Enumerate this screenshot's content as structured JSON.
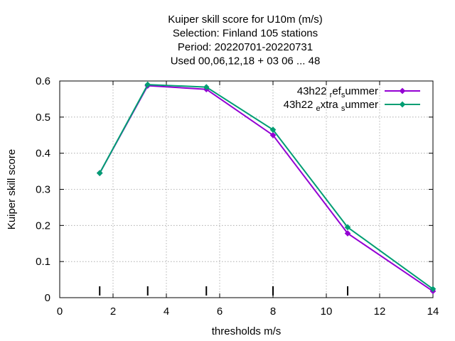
{
  "chart_data": {
    "type": "line",
    "title_lines": [
      "Kuiper skill score  for U10m (m/s)",
      "Selection: Finland     105 stations",
      "Period: 20220701-20220731",
      "Used  00,06,12,18  + 03 06 ... 48"
    ],
    "xlabel": "thresholds m/s",
    "ylabel": "Kuiper skill score",
    "xlim": [
      0,
      14
    ],
    "ylim": [
      0,
      0.6
    ],
    "xticks": [
      0,
      2,
      4,
      6,
      8,
      10,
      12,
      14
    ],
    "xtick_labels": [
      "0",
      "2",
      "4",
      "6",
      "8",
      "10",
      "12",
      "14"
    ],
    "yticks": [
      0,
      0.1,
      0.2,
      0.3,
      0.4,
      0.5,
      0.6
    ],
    "ytick_labels": [
      "0",
      "0.1",
      "0.2",
      "0.3",
      "0.4",
      "0.5",
      "0.6"
    ],
    "grid": true,
    "legend_position": "top-right",
    "threshold_markers": [
      1.5,
      3.3,
      5.5,
      8,
      10.8
    ],
    "series": [
      {
        "name": "43h22_ref_summer",
        "legend_parts": [
          {
            "text": "43h22 ",
            "sub": false
          },
          {
            "text": "r",
            "sub": true
          },
          {
            "text": "ef",
            "sub": false
          },
          {
            "text": "s",
            "sub": true
          },
          {
            "text": "ummer",
            "sub": false
          }
        ],
        "color": "#9400d3",
        "x": [
          1.5,
          3.3,
          5.5,
          8,
          10.8,
          14
        ],
        "y": [
          0.345,
          0.587,
          0.577,
          0.45,
          0.178,
          0.018
        ]
      },
      {
        "name": "43h22_extra_summer",
        "legend_parts": [
          {
            "text": "43h22 ",
            "sub": false
          },
          {
            "text": "e",
            "sub": true
          },
          {
            "text": "xtra ",
            "sub": false
          },
          {
            "text": "s",
            "sub": true
          },
          {
            "text": "ummer",
            "sub": false
          }
        ],
        "color": "#009e73",
        "x": [
          1.5,
          3.3,
          5.5,
          8,
          10.8,
          14
        ],
        "y": [
          0.345,
          0.59,
          0.583,
          0.465,
          0.195,
          0.024
        ]
      }
    ]
  }
}
